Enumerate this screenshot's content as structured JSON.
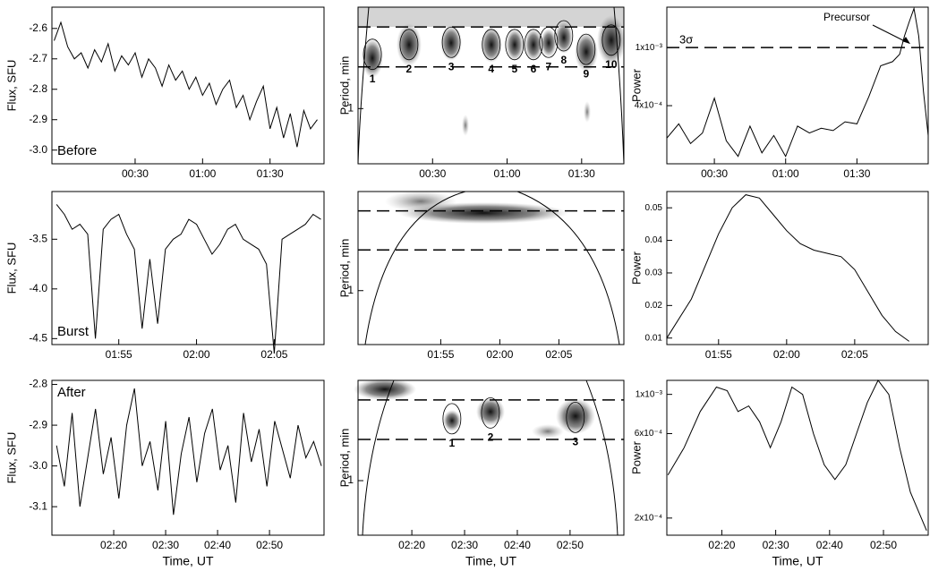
{
  "chart_data": [
    {
      "type": "line",
      "ylabel": "Flux, SFU",
      "label": "Before",
      "color": "#000000",
      "x": [
        -6,
        -3,
        0,
        3,
        6,
        9,
        12,
        15,
        18,
        21,
        24,
        27,
        30,
        33,
        36,
        39,
        42,
        45,
        48,
        51,
        54,
        57,
        60,
        63,
        66,
        69,
        72,
        75,
        78,
        81,
        84,
        87,
        90,
        93,
        96,
        99,
        102,
        105,
        108,
        111
      ],
      "values": [
        -2.64,
        -2.58,
        -2.66,
        -2.7,
        -2.68,
        -2.73,
        -2.67,
        -2.71,
        -2.65,
        -2.74,
        -2.69,
        -2.72,
        -2.68,
        -2.76,
        -2.7,
        -2.73,
        -2.79,
        -2.72,
        -2.77,
        -2.74,
        -2.8,
        -2.76,
        -2.82,
        -2.78,
        -2.85,
        -2.8,
        -2.77,
        -2.86,
        -2.82,
        -2.9,
        -2.84,
        -2.79,
        -2.93,
        -2.86,
        -2.96,
        -2.88,
        -2.99,
        -2.87,
        -2.93,
        -2.9
      ],
      "xlim": [
        -7,
        114
      ],
      "xticks": [
        {
          "value": 30,
          "label": "00:30"
        },
        {
          "value": 60,
          "label": "01:00"
        },
        {
          "value": 90,
          "label": "01:30"
        }
      ],
      "ylim": [
        -3.045,
        -2.53
      ],
      "yticks": [
        -2.6,
        -2.7,
        -2.8,
        -2.9,
        {
          "value": -3.0,
          "label": "-3.0"
        }
      ]
    },
    {
      "type": "wavelet",
      "ylabel": "Period, min",
      "log": true,
      "xlim": [
        0,
        107
      ],
      "xticks": [
        {
          "value": 30,
          "label": "00:30"
        },
        {
          "value": 60,
          "label": "01:00"
        },
        {
          "value": 90,
          "label": "01:30"
        }
      ],
      "ylim": [
        0.55,
        3.0
      ],
      "yticks": [
        1
      ],
      "period_band": [
        1.57,
        2.42
      ],
      "regions": [
        {
          "label": "1",
          "x": 5.8,
          "period": 1.8
        },
        {
          "label": "2",
          "x": 20.5,
          "period": 2.0
        },
        {
          "label": "3",
          "x": 37.5,
          "period": 2.05
        },
        {
          "label": "4",
          "x": 53.6,
          "period": 2.0
        },
        {
          "label": "5",
          "x": 63,
          "period": 2.0
        },
        {
          "label": "6",
          "x": 70.6,
          "period": 2.0
        },
        {
          "label": "7",
          "x": 76.7,
          "period": 2.05
        },
        {
          "label": "8",
          "x": 82.8,
          "period": 2.2
        },
        {
          "label": "9",
          "x": 91.8,
          "period": 1.9
        },
        {
          "label": "10",
          "x": 101.9,
          "period": 2.1
        }
      ]
    },
    {
      "type": "line",
      "ylabel": "Power",
      "log": true,
      "color": "#000000",
      "x": [
        10,
        15,
        20,
        25,
        30,
        35,
        40,
        45,
        50,
        55,
        60,
        65,
        70,
        75,
        80,
        85,
        90,
        95,
        100,
        105,
        108,
        110,
        112,
        114,
        116,
        118,
        120
      ],
      "values": [
        0.00024,
        0.0003,
        0.00022,
        0.00026,
        0.00045,
        0.00023,
        0.00018,
        0.00029,
        0.00019,
        0.00025,
        0.00018,
        0.00029,
        0.00026,
        0.00028,
        0.00027,
        0.00031,
        0.0003,
        0.00046,
        0.00075,
        0.0008,
        0.0009,
        0.0012,
        0.0015,
        0.00185,
        0.0012,
        0.0005,
        0.00025
      ],
      "xlim": [
        10,
        120
      ],
      "xticks": [
        {
          "value": 30,
          "label": "00:30"
        },
        {
          "value": 60,
          "label": "01:00"
        },
        {
          "value": 90,
          "label": "01:30"
        }
      ],
      "ylim": [
        0.00016,
        0.00189
      ],
      "yticks": [
        {
          "value": 0.001,
          "label": "1x10⁻³"
        },
        {
          "value": 0.0004,
          "label": "4x10⁻⁴"
        }
      ],
      "threshold": 0.001,
      "threshold_label": "3σ",
      "annotation": "Precursor"
    },
    {
      "type": "line",
      "ylabel": "Flux, SFU",
      "label": "Burst",
      "color": "#000000",
      "x": [
        111,
        111.5,
        112,
        112.5,
        113,
        113.5,
        114,
        114.5,
        115,
        115.5,
        116,
        116.5,
        117,
        117.5,
        118,
        118.5,
        119,
        119.5,
        120,
        120.5,
        121,
        121.5,
        122,
        122.5,
        123,
        123.5,
        124,
        124.5,
        125,
        125.5,
        126,
        126.5,
        127,
        127.5,
        128
      ],
      "values": [
        -3.15,
        -3.25,
        -3.4,
        -3.35,
        -3.45,
        -4.5,
        -3.4,
        -3.3,
        -3.25,
        -3.45,
        -3.6,
        -4.4,
        -3.7,
        -4.35,
        -3.6,
        -3.5,
        -3.45,
        -3.3,
        -3.35,
        -3.5,
        -3.65,
        -3.55,
        -3.4,
        -3.35,
        -3.5,
        -3.55,
        -3.6,
        -3.75,
        -4.65,
        -3.5,
        -3.45,
        -3.4,
        -3.35,
        -3.25,
        -3.3
      ],
      "xlim": [
        110.7,
        128.2
      ],
      "xticks": [
        {
          "value": 115,
          "label": "01:55"
        },
        {
          "value": 120,
          "label": "02:00"
        },
        {
          "value": 125,
          "label": "02:05"
        }
      ],
      "ylim": [
        -4.56,
        -3.02
      ],
      "yticks": [
        -3.5,
        {
          "value": -4.0,
          "label": "-4.0"
        },
        -4.5
      ]
    },
    {
      "type": "wavelet",
      "ylabel": "Period, min",
      "log": true,
      "xlim": [
        108,
        130.5
      ],
      "xticks": [
        {
          "value": 115,
          "label": "01:55"
        },
        {
          "value": 120,
          "label": "02:00"
        },
        {
          "value": 125,
          "label": "02:05"
        }
      ],
      "ylim": [
        0.55,
        3.0
      ],
      "yticks": [
        1
      ],
      "period_band": [
        1.57,
        2.42
      ],
      "regions": []
    },
    {
      "type": "line",
      "ylabel": "Power",
      "color": "#000000",
      "x": [
        111.2,
        113,
        115,
        116,
        117,
        118,
        119,
        120,
        121,
        122,
        123,
        124,
        125,
        126,
        127,
        128,
        129
      ],
      "values": [
        0.01,
        0.022,
        0.042,
        0.05,
        0.054,
        0.053,
        0.048,
        0.043,
        0.039,
        0.037,
        0.036,
        0.035,
        0.031,
        0.024,
        0.017,
        0.012,
        0.009
      ],
      "xlim": [
        111.2,
        130.4
      ],
      "xticks": [
        {
          "value": 115,
          "label": "01:55"
        },
        {
          "value": 120,
          "label": "02:00"
        },
        {
          "value": 125,
          "label": "02:05"
        }
      ],
      "ylim": [
        0.008,
        0.055
      ],
      "yticks": [
        0.05,
        0.04,
        0.03,
        0.02,
        0.01
      ]
    },
    {
      "type": "line",
      "ylabel": "Flux, SFU",
      "label": "After",
      "xlabel": "Time, UT",
      "color": "#000000",
      "x": [
        129,
        130.5,
        132,
        133.5,
        135,
        136.5,
        138,
        139.5,
        141,
        142.5,
        144,
        145.5,
        147,
        148.5,
        150,
        151.5,
        153,
        154.5,
        156,
        157.5,
        159,
        160.5,
        162,
        163.5,
        165,
        166.5,
        168,
        169.5,
        171,
        172.5,
        174,
        175.5,
        177,
        178.5,
        180
      ],
      "values": [
        -2.95,
        -3.05,
        -2.87,
        -3.1,
        -2.98,
        -2.86,
        -3.02,
        -2.93,
        -3.08,
        -2.9,
        -2.81,
        -3.0,
        -2.94,
        -3.06,
        -2.89,
        -3.12,
        -2.97,
        -2.88,
        -3.04,
        -2.92,
        -2.86,
        -3.01,
        -2.95,
        -3.09,
        -2.87,
        -2.99,
        -2.91,
        -3.05,
        -2.89,
        -2.96,
        -3.03,
        -2.9,
        -2.98,
        -2.94,
        -3.0
      ],
      "xlim": [
        128.1,
        180.5
      ],
      "xticks": [
        {
          "value": 140,
          "label": "02:20"
        },
        {
          "value": 150,
          "label": "02:30"
        },
        {
          "value": 160,
          "label": "02:40"
        },
        {
          "value": 170,
          "label": "02:50"
        }
      ],
      "ylim": [
        -3.17,
        -2.79
      ],
      "yticks": [
        -2.8,
        -2.9,
        {
          "value": -3.0,
          "label": "-3.0"
        },
        -3.1
      ]
    },
    {
      "type": "wavelet",
      "ylabel": "Period, min",
      "xlabel": "Time, UT",
      "log": true,
      "xlim": [
        129.8,
        180.2
      ],
      "xticks": [
        {
          "value": 140,
          "label": "02:20"
        },
        {
          "value": 150,
          "label": "02:30"
        },
        {
          "value": 160,
          "label": "02:40"
        },
        {
          "value": 170,
          "label": "02:50"
        }
      ],
      "ylim": [
        0.55,
        3.0
      ],
      "yticks": [
        1
      ],
      "period_band": [
        1.57,
        2.42
      ],
      "regions": [
        {
          "label": "1",
          "x": 147.6,
          "period": 1.97
        },
        {
          "label": "2",
          "x": 154.9,
          "period": 2.1
        },
        {
          "label": "3",
          "x": 171.0,
          "period": 2.0
        }
      ]
    },
    {
      "type": "line",
      "ylabel": "Power",
      "xlabel": "Time, UT",
      "log": true,
      "color": "#000000",
      "x": [
        130,
        133,
        136,
        139,
        141,
        143,
        145,
        147,
        149,
        151,
        153,
        155,
        157,
        159,
        161,
        163,
        165,
        167,
        169,
        171,
        173,
        175,
        178
      ],
      "values": [
        0.00035,
        0.0005,
        0.0008,
        0.0011,
        0.00105,
        0.0008,
        0.00086,
        0.0007,
        0.0005,
        0.0007,
        0.0011,
        0.001,
        0.0006,
        0.0004,
        0.00033,
        0.0004,
        0.0006,
        0.0009,
        0.0012,
        0.001,
        0.0005,
        0.00028,
        0.00017
      ],
      "xlim": [
        129.8,
        178.3
      ],
      "xticks": [
        {
          "value": 140,
          "label": "02:20"
        },
        {
          "value": 150,
          "label": "02:30"
        },
        {
          "value": 160,
          "label": "02:40"
        },
        {
          "value": 170,
          "label": "02:50"
        }
      ],
      "ylim": [
        0.00016,
        0.0012
      ],
      "yticks": [
        {
          "value": 0.001,
          "label": "1x10⁻³"
        },
        {
          "value": 0.0006,
          "label": "6x10⁻⁴"
        },
        {
          "value": 0.0002,
          "label": "2x10⁻⁴"
        }
      ]
    }
  ]
}
